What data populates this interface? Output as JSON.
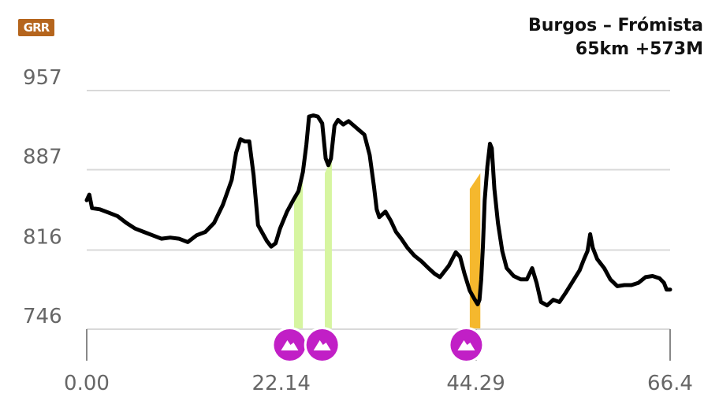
{
  "header": {
    "logo_text": "GRR",
    "route": "Burgos – Frómista",
    "stats": "65km +573M"
  },
  "colors": {
    "profile": "#000000",
    "grid": "#d9d9d9",
    "climb_easy": "#d6f5a0",
    "climb_hard": "#f5b82e",
    "marker": "#c11fc6",
    "logo": "#b5651d"
  },
  "chart_data": {
    "type": "line",
    "title": "",
    "xlabel": "",
    "ylabel": "",
    "x_ticks": [
      "0.00",
      "22.14",
      "44.29",
      "66.4"
    ],
    "x_tick_values": [
      0,
      22.14,
      44.29,
      66.4
    ],
    "y_ticks": [
      "957",
      "887",
      "816",
      "746"
    ],
    "y_tick_values": [
      957,
      887,
      816,
      746
    ],
    "xlim": [
      0,
      66.4
    ],
    "ylim": [
      746,
      957
    ],
    "grid": true,
    "series": [
      {
        "values": [
          [
            0,
            860
          ],
          [
            0.3,
            865
          ],
          [
            0.6,
            853
          ],
          [
            1.5,
            852
          ],
          [
            2.5,
            849
          ],
          [
            3.5,
            846
          ],
          [
            4.5,
            840
          ],
          [
            5.5,
            835
          ],
          [
            6.5,
            832
          ],
          [
            7.5,
            829
          ],
          [
            8.5,
            826
          ],
          [
            9.5,
            827
          ],
          [
            10.5,
            826
          ],
          [
            11.5,
            823
          ],
          [
            12.5,
            829
          ],
          [
            13.5,
            832
          ],
          [
            14.5,
            840
          ],
          [
            15.5,
            856
          ],
          [
            16.5,
            878
          ],
          [
            17.0,
            902
          ],
          [
            17.5,
            914
          ],
          [
            18.0,
            912
          ],
          [
            18.5,
            912
          ],
          [
            19.0,
            882
          ],
          [
            19.5,
            838
          ],
          [
            20.5,
            824
          ],
          [
            21.0,
            819
          ],
          [
            21.5,
            822
          ],
          [
            22.0,
            835
          ],
          [
            22.8,
            850
          ],
          [
            23.5,
            860
          ],
          [
            24.1,
            868
          ],
          [
            24.6,
            885
          ],
          [
            25.0,
            909
          ],
          [
            25.3,
            934
          ],
          [
            25.8,
            935
          ],
          [
            26.3,
            934
          ],
          [
            26.8,
            928
          ],
          [
            27.2,
            897
          ],
          [
            27.5,
            891
          ],
          [
            27.8,
            897
          ],
          [
            28.2,
            926
          ],
          [
            28.6,
            931
          ],
          [
            29.2,
            927
          ],
          [
            29.8,
            930
          ],
          [
            30.4,
            926
          ],
          [
            31.0,
            922
          ],
          [
            31.6,
            918
          ],
          [
            32.2,
            900
          ],
          [
            32.7,
            872
          ],
          [
            33.0,
            852
          ],
          [
            33.3,
            845
          ],
          [
            34.0,
            850
          ],
          [
            34.6,
            842
          ],
          [
            35.2,
            832
          ],
          [
            35.8,
            826
          ],
          [
            36.5,
            818
          ],
          [
            37.3,
            811
          ],
          [
            38.1,
            806
          ],
          [
            38.9,
            800
          ],
          [
            39.6,
            795
          ],
          [
            40.2,
            792
          ],
          [
            41.2,
            802
          ],
          [
            42.0,
            814
          ],
          [
            42.5,
            810
          ],
          [
            43.0,
            795
          ],
          [
            43.6,
            780
          ],
          [
            44.1,
            773
          ],
          [
            44.5,
            768
          ],
          [
            44.7,
            772
          ],
          [
            44.9,
            790
          ],
          [
            45.1,
            820
          ],
          [
            45.3,
            860
          ],
          [
            45.6,
            890
          ],
          [
            45.9,
            910
          ],
          [
            46.1,
            906
          ],
          [
            46.4,
            870
          ],
          [
            46.8,
            840
          ],
          [
            47.3,
            815
          ],
          [
            47.8,
            800
          ],
          [
            48.6,
            793
          ],
          [
            49.4,
            790
          ],
          [
            50.1,
            790
          ],
          [
            50.7,
            800
          ],
          [
            51.2,
            787
          ],
          [
            51.7,
            770
          ],
          [
            52.4,
            767
          ],
          [
            53.1,
            772
          ],
          [
            53.8,
            770
          ],
          [
            54.5,
            778
          ],
          [
            55.3,
            788
          ],
          [
            56.1,
            798
          ],
          [
            56.6,
            808
          ],
          [
            57.0,
            815
          ],
          [
            57.3,
            830
          ],
          [
            57.6,
            818
          ],
          [
            58.1,
            808
          ],
          [
            58.9,
            800
          ],
          [
            59.6,
            790
          ],
          [
            60.4,
            784
          ],
          [
            61.2,
            785
          ],
          [
            62.0,
            785
          ],
          [
            62.8,
            787
          ],
          [
            63.6,
            792
          ],
          [
            64.4,
            793
          ],
          [
            65.2,
            791
          ],
          [
            65.7,
            787
          ],
          [
            66.0,
            781
          ],
          [
            66.4,
            781
          ]
        ]
      }
    ],
    "climbs": [
      {
        "x_start": 23.6,
        "x_end": 24.6,
        "y_start": 746,
        "y_end": 876,
        "level": "easy"
      },
      {
        "x_start": 27.1,
        "x_end": 27.9,
        "y_start": 746,
        "y_end": 898,
        "level": "easy"
      },
      {
        "x_start": 43.6,
        "x_end": 44.8,
        "y_start": 746,
        "y_end": 884,
        "level": "hard"
      }
    ],
    "markers": [
      {
        "x": 23.1,
        "icon": "mountain-icon"
      },
      {
        "x": 26.8,
        "icon": "mountain-icon"
      },
      {
        "x": 43.2,
        "icon": "mountain-icon"
      }
    ]
  }
}
